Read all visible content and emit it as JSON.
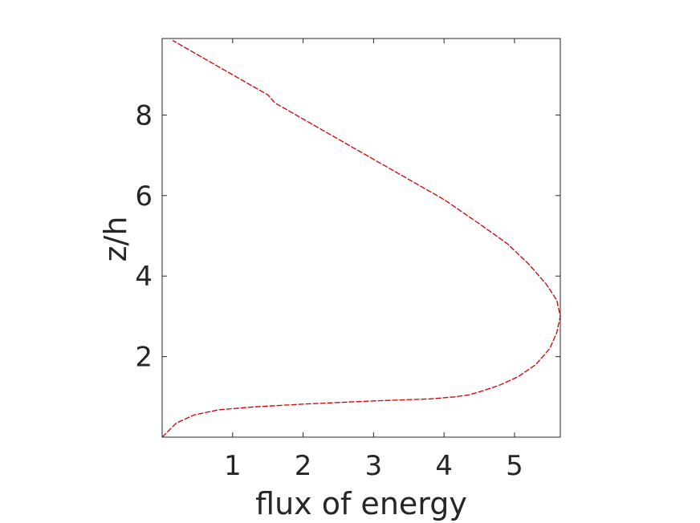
{
  "chart_data": {
    "type": "line",
    "title": "",
    "xlabel": "flux of energy",
    "ylabel": "z/h",
    "xlim": [
      0,
      5.65
    ],
    "ylim": [
      0,
      9.9
    ],
    "xticks": [
      1,
      2,
      3,
      4,
      5
    ],
    "yticks": [
      2,
      4,
      6,
      8
    ],
    "xtick_labels": [
      "1",
      "2",
      "3",
      "4",
      "5"
    ],
    "ytick_labels": [
      "2",
      "4",
      "6",
      "8"
    ],
    "grid": false,
    "legend": "none",
    "series": [
      {
        "color": "#cc0000",
        "line_style": "dashed",
        "x": [
          0.0,
          0.2,
          0.45,
          0.8,
          1.3,
          2.0,
          3.0,
          3.8,
          4.15,
          4.35,
          4.55,
          4.8,
          5.05,
          5.3,
          5.5,
          5.6,
          5.65,
          5.6,
          5.45,
          5.2,
          4.9,
          4.5,
          4.0,
          3.4,
          2.6,
          1.6,
          1.5,
          1.0,
          0.5,
          0.15
        ],
        "y": [
          0.0,
          0.35,
          0.55,
          0.68,
          0.75,
          0.82,
          0.9,
          0.95,
          1.0,
          1.05,
          1.15,
          1.3,
          1.5,
          1.8,
          2.2,
          2.6,
          3.0,
          3.4,
          3.8,
          4.3,
          4.8,
          5.3,
          5.9,
          6.5,
          7.3,
          8.3,
          8.5,
          9.0,
          9.5,
          9.85
        ]
      }
    ]
  }
}
